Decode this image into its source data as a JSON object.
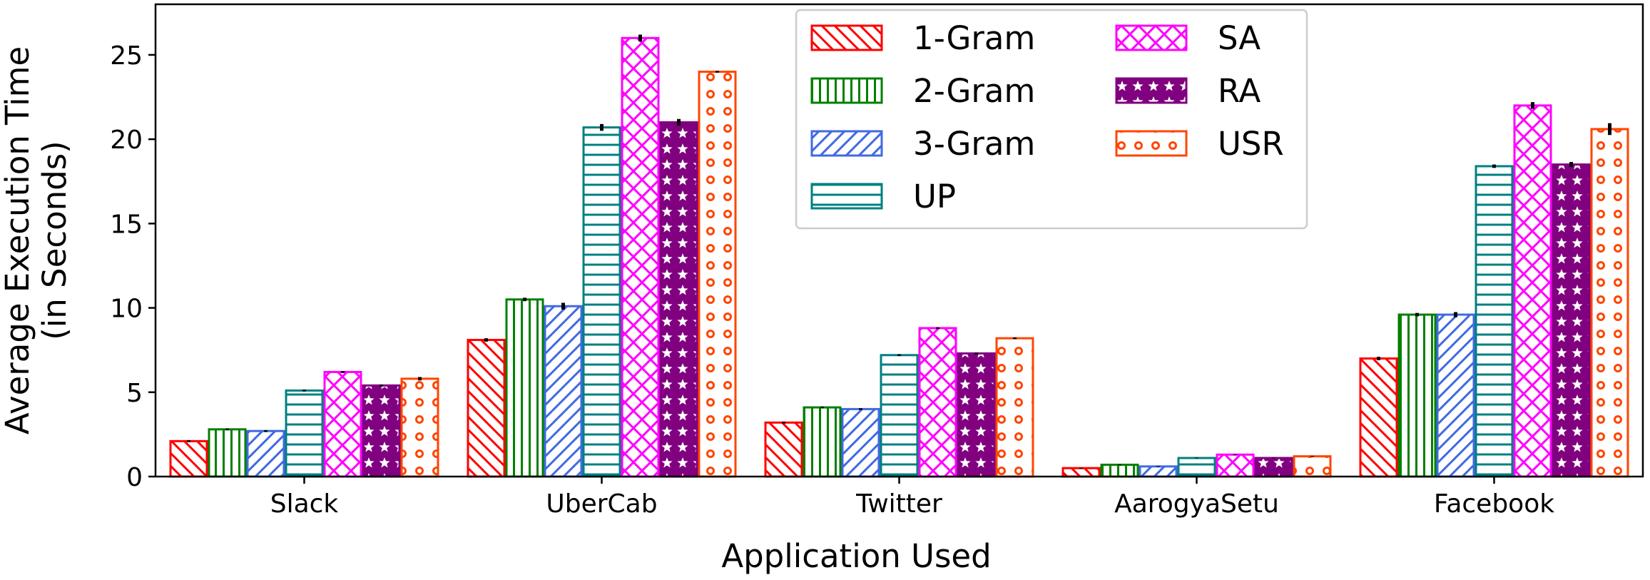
{
  "chart_data": {
    "type": "bar",
    "title": "",
    "xlabel": "Application Used",
    "ylabel_lines": [
      "Average Execution Time",
      "(in Seconds)"
    ],
    "ylim": [
      0,
      28
    ],
    "yticks": [
      0,
      5,
      10,
      15,
      20,
      25
    ],
    "grid": false,
    "legend_placement": "top-center",
    "categories": [
      "Slack",
      "UberCab",
      "Twitter",
      "AarogyaSetu",
      "Facebook"
    ],
    "series": [
      {
        "name": "1-Gram",
        "color": "#ff0000",
        "pattern": "diagonal-back",
        "values": [
          2.1,
          8.1,
          3.2,
          0.5,
          7.0
        ],
        "errors": [
          0.05,
          0.1,
          0.05,
          0.02,
          0.1
        ]
      },
      {
        "name": "2-Gram",
        "color": "#008000",
        "pattern": "vertical",
        "values": [
          2.8,
          10.5,
          4.1,
          0.7,
          9.6
        ],
        "errors": [
          0.05,
          0.1,
          0.05,
          0.02,
          0.1
        ]
      },
      {
        "name": "3-Gram",
        "color": "#4169e1",
        "pattern": "diagonal-forward",
        "values": [
          2.7,
          10.1,
          4.0,
          0.6,
          9.6
        ],
        "errors": [
          0.05,
          0.2,
          0.05,
          0.02,
          0.15
        ]
      },
      {
        "name": "UP",
        "color": "#008080",
        "pattern": "horizontal",
        "values": [
          5.1,
          20.7,
          7.2,
          1.1,
          18.4
        ],
        "errors": [
          0.05,
          0.2,
          0.05,
          0.02,
          0.1
        ]
      },
      {
        "name": "SA",
        "color": "#ff00ff",
        "pattern": "crosshatch",
        "values": [
          6.2,
          26.0,
          8.8,
          1.3,
          22.0
        ],
        "errors": [
          0.05,
          0.2,
          0.05,
          0.02,
          0.2
        ]
      },
      {
        "name": "RA",
        "color": "#800080",
        "pattern": "stars",
        "values": [
          5.4,
          21.0,
          7.3,
          1.1,
          18.5
        ],
        "errors": [
          0.05,
          0.2,
          0.05,
          0.02,
          0.15
        ]
      },
      {
        "name": "USR",
        "color": "#ff4500",
        "pattern": "circles",
        "values": [
          5.8,
          24.0,
          8.2,
          1.2,
          20.6
        ],
        "errors": [
          0.1,
          0.05,
          0.05,
          0.02,
          0.35
        ]
      }
    ]
  }
}
